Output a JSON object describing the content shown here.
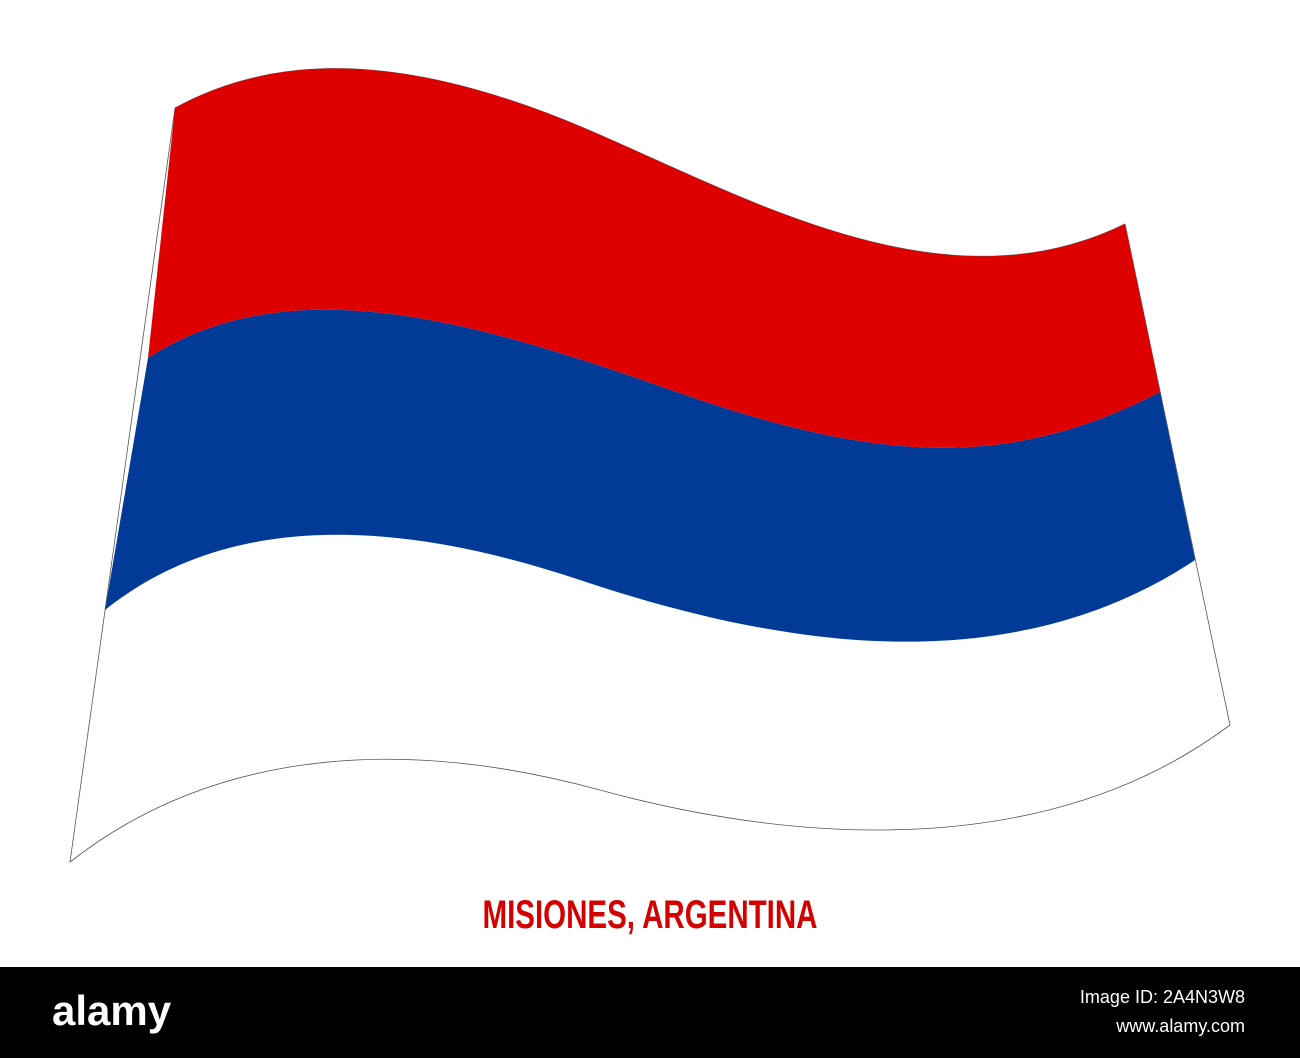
{
  "title": "MISIONES, ARGENTINA",
  "footer": {
    "logo": "alamy",
    "image_id": "Image ID: 2A4N3W8",
    "url": "www.alamy.com"
  }
}
